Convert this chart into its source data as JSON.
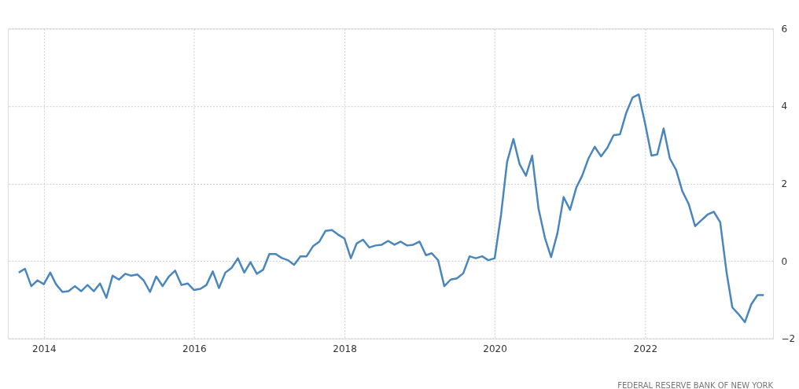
{
  "chart_data": {
    "type": "line",
    "x": [
      "2013-09",
      "2013-10",
      "2013-11",
      "2013-12",
      "2014-01",
      "2014-02",
      "2014-03",
      "2014-04",
      "2014-05",
      "2014-06",
      "2014-07",
      "2014-08",
      "2014-09",
      "2014-10",
      "2014-11",
      "2014-12",
      "2015-01",
      "2015-02",
      "2015-03",
      "2015-04",
      "2015-05",
      "2015-06",
      "2015-07",
      "2015-08",
      "2015-09",
      "2015-10",
      "2015-11",
      "2015-12",
      "2016-01",
      "2016-02",
      "2016-03",
      "2016-04",
      "2016-05",
      "2016-06",
      "2016-07",
      "2016-08",
      "2016-09",
      "2016-10",
      "2016-11",
      "2016-12",
      "2017-01",
      "2017-02",
      "2017-03",
      "2017-04",
      "2017-05",
      "2017-06",
      "2017-07",
      "2017-08",
      "2017-09",
      "2017-10",
      "2017-11",
      "2017-12",
      "2018-01",
      "2018-02",
      "2018-03",
      "2018-04",
      "2018-05",
      "2018-06",
      "2018-07",
      "2018-08",
      "2018-09",
      "2018-10",
      "2018-11",
      "2018-12",
      "2019-01",
      "2019-02",
      "2019-03",
      "2019-04",
      "2019-05",
      "2019-06",
      "2019-07",
      "2019-08",
      "2019-09",
      "2019-10",
      "2019-11",
      "2019-12",
      "2020-01",
      "2020-02",
      "2020-03",
      "2020-04",
      "2020-05",
      "2020-06",
      "2020-07",
      "2020-08",
      "2020-09",
      "2020-10",
      "2020-11",
      "2020-12",
      "2021-01",
      "2021-02",
      "2021-03",
      "2021-04",
      "2021-05",
      "2021-06",
      "2021-07",
      "2021-08",
      "2021-09",
      "2021-10",
      "2021-11",
      "2021-12",
      "2022-01",
      "2022-02",
      "2022-03",
      "2022-04",
      "2022-05",
      "2022-06",
      "2022-07",
      "2022-08",
      "2022-09",
      "2022-10",
      "2022-11",
      "2022-12",
      "2023-01",
      "2023-02",
      "2023-03",
      "2023-04",
      "2023-05",
      "2023-06",
      "2023-07",
      "2023-08"
    ],
    "series": [
      {
        "color": "#4a86be",
        "values": [
          -0.3,
          -0.2,
          -0.65,
          -0.5,
          -0.6,
          -0.3,
          -0.6,
          -0.8,
          -0.78,
          -0.65,
          -0.78,
          -0.62,
          -0.78,
          -0.58,
          -0.95,
          -0.38,
          -0.48,
          -0.33,
          -0.38,
          -0.35,
          -0.5,
          -0.8,
          -0.4,
          -0.65,
          -0.4,
          -0.25,
          -0.62,
          -0.58,
          -0.75,
          -0.72,
          -0.62,
          -0.27,
          -0.7,
          -0.3,
          -0.18,
          0.07,
          -0.3,
          -0.03,
          -0.33,
          -0.23,
          0.18,
          0.18,
          0.08,
          0.02,
          -0.1,
          0.12,
          0.12,
          0.38,
          0.5,
          0.78,
          0.8,
          0.68,
          0.58,
          0.07,
          0.45,
          0.55,
          0.35,
          0.4,
          0.42,
          0.52,
          0.42,
          0.5,
          0.4,
          0.42,
          0.5,
          0.15,
          0.2,
          0.02,
          -0.65,
          -0.48,
          -0.45,
          -0.32,
          0.12,
          0.07,
          0.12,
          0.02,
          0.07,
          1.2,
          2.55,
          3.15,
          2.5,
          2.2,
          2.72,
          1.35,
          0.6,
          0.1,
          0.72,
          1.65,
          1.32,
          1.9,
          2.2,
          2.65,
          2.95,
          2.7,
          2.92,
          3.25,
          3.27,
          3.82,
          4.22,
          4.3,
          3.55,
          2.72,
          2.75,
          3.42,
          2.65,
          2.35,
          1.8,
          1.47,
          0.9,
          1.05,
          1.2,
          1.27,
          1.0,
          -0.3,
          -1.2,
          -1.38,
          -1.58,
          -1.12,
          -0.88,
          -0.88
        ]
      }
    ],
    "xlim": [
      "2013-07-10",
      "2023-09-15"
    ],
    "xticks": [
      "2014",
      "2016",
      "2018",
      "2020",
      "2022"
    ],
    "ylim": [
      -2,
      6
    ],
    "yticks": [
      -2,
      0,
      2,
      4,
      6
    ],
    "grid": true,
    "legend": false,
    "marker": "none",
    "line_style": "solid",
    "annotations": [
      "FEDERAL RESERVE BANK OF NEW YORK"
    ]
  }
}
